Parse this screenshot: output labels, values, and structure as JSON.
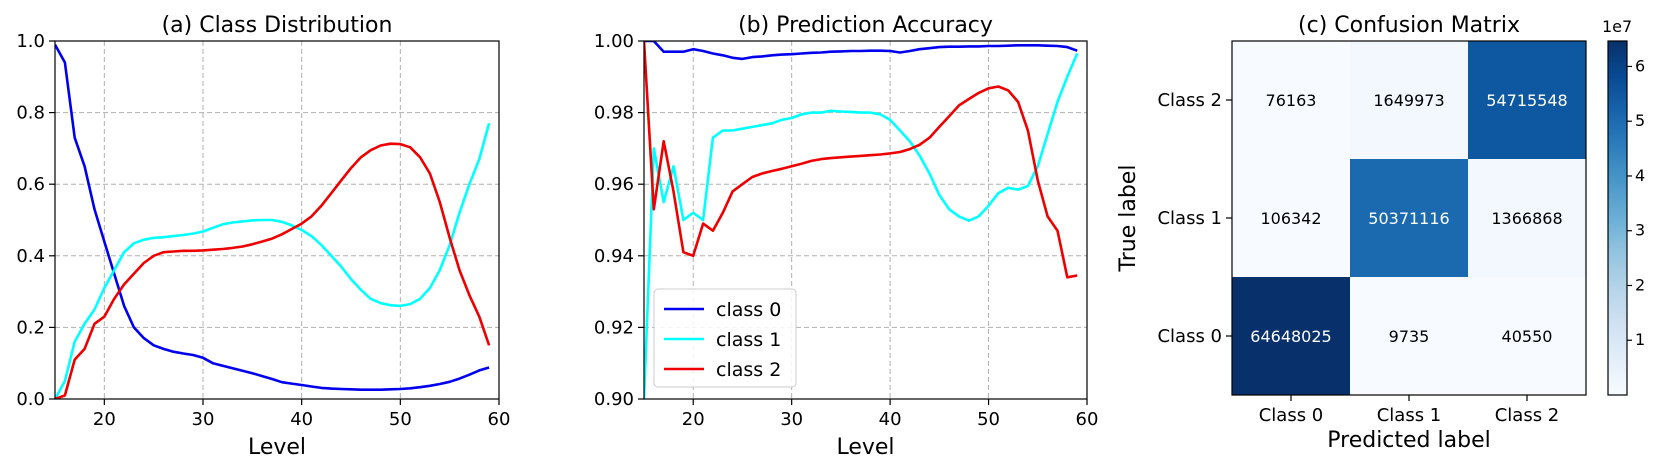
{
  "chart_data": [
    {
      "type": "line",
      "title": "(a) Class Distribution",
      "xlabel": "Level",
      "ylabel": "",
      "xlim": [
        15,
        60
      ],
      "ylim": [
        0,
        1
      ],
      "xticks": [
        "20",
        "30",
        "40",
        "50",
        "60"
      ],
      "yticks": [
        "0.0",
        "0.2",
        "0.4",
        "0.6",
        "0.8",
        "1.0"
      ],
      "grid": true,
      "x": [
        15,
        16,
        17,
        18,
        19,
        20,
        21,
        22,
        23,
        24,
        25,
        26,
        27,
        28,
        29,
        30,
        31,
        32,
        33,
        34,
        35,
        36,
        37,
        38,
        39,
        40,
        41,
        42,
        43,
        44,
        45,
        46,
        47,
        48,
        49,
        50,
        51,
        52,
        53,
        54,
        55,
        56,
        57,
        58,
        59
      ],
      "series": [
        {
          "color": "#0000ee",
          "values": [
            0.99,
            0.94,
            0.73,
            0.65,
            0.53,
            0.44,
            0.35,
            0.26,
            0.2,
            0.17,
            0.15,
            0.14,
            0.132,
            0.127,
            0.123,
            0.115,
            0.1,
            0.093,
            0.086,
            0.079,
            0.072,
            0.064,
            0.056,
            0.047,
            0.043,
            0.039,
            0.035,
            0.031,
            0.029,
            0.028,
            0.027,
            0.026,
            0.026,
            0.026,
            0.027,
            0.028,
            0.03,
            0.033,
            0.037,
            0.042,
            0.048,
            0.057,
            0.068,
            0.08,
            0.088
          ]
        },
        {
          "color": "#00ffff",
          "values": [
            0.0,
            0.05,
            0.16,
            0.21,
            0.25,
            0.31,
            0.36,
            0.41,
            0.435,
            0.445,
            0.45,
            0.452,
            0.455,
            0.458,
            0.462,
            0.468,
            0.478,
            0.488,
            0.493,
            0.496,
            0.499,
            0.5,
            0.5,
            0.495,
            0.485,
            0.472,
            0.455,
            0.43,
            0.4,
            0.37,
            0.335,
            0.305,
            0.28,
            0.268,
            0.262,
            0.26,
            0.265,
            0.28,
            0.31,
            0.36,
            0.43,
            0.52,
            0.6,
            0.67,
            0.77
          ]
        },
        {
          "color": "#ee0000",
          "values": [
            0.0,
            0.01,
            0.11,
            0.14,
            0.21,
            0.23,
            0.28,
            0.32,
            0.35,
            0.38,
            0.4,
            0.41,
            0.412,
            0.414,
            0.414,
            0.415,
            0.417,
            0.419,
            0.422,
            0.426,
            0.432,
            0.44,
            0.448,
            0.46,
            0.475,
            0.49,
            0.51,
            0.54,
            0.575,
            0.61,
            0.645,
            0.675,
            0.695,
            0.708,
            0.713,
            0.712,
            0.703,
            0.675,
            0.63,
            0.55,
            0.45,
            0.36,
            0.29,
            0.23,
            0.15
          ]
        }
      ]
    },
    {
      "type": "line",
      "title": "(b) Prediction Accuracy",
      "xlabel": "Level",
      "ylabel": "",
      "xlim": [
        15,
        60
      ],
      "ylim": [
        0.9,
        1.0
      ],
      "xticks": [
        "20",
        "30",
        "40",
        "50",
        "60"
      ],
      "yticks": [
        "0.90",
        "0.92",
        "0.94",
        "0.96",
        "0.98",
        "1.00"
      ],
      "grid": true,
      "legend": "lower-left",
      "x": [
        15,
        16,
        17,
        18,
        19,
        20,
        21,
        22,
        23,
        24,
        25,
        26,
        27,
        28,
        29,
        30,
        31,
        32,
        33,
        34,
        35,
        36,
        37,
        38,
        39,
        40,
        41,
        42,
        43,
        44,
        45,
        46,
        47,
        48,
        49,
        50,
        51,
        52,
        53,
        54,
        55,
        56,
        57,
        58,
        59
      ],
      "series": [
        {
          "name": "class 0",
          "color": "#0000ee",
          "values": [
            1.0,
            1.0,
            0.997,
            0.997,
            0.997,
            0.9977,
            0.9972,
            0.9965,
            0.996,
            0.9953,
            0.995,
            0.9955,
            0.9957,
            0.996,
            0.9962,
            0.9963,
            0.9965,
            0.9967,
            0.9968,
            0.997,
            0.9971,
            0.9972,
            0.9972,
            0.9973,
            0.9973,
            0.9972,
            0.9968,
            0.9972,
            0.9977,
            0.998,
            0.9983,
            0.9984,
            0.9984,
            0.9985,
            0.9985,
            0.9986,
            0.9986,
            0.9987,
            0.9988,
            0.9988,
            0.9988,
            0.9987,
            0.9986,
            0.9983,
            0.9973
          ]
        },
        {
          "name": "class 1",
          "color": "#00ffff",
          "values": [
            0.9,
            0.97,
            0.955,
            0.965,
            0.95,
            0.952,
            0.95,
            0.973,
            0.975,
            0.975,
            0.9755,
            0.976,
            0.9765,
            0.977,
            0.978,
            0.9785,
            0.9795,
            0.98,
            0.98,
            0.9805,
            0.9803,
            0.9802,
            0.98,
            0.98,
            0.9795,
            0.978,
            0.975,
            0.972,
            0.968,
            0.963,
            0.957,
            0.953,
            0.951,
            0.9498,
            0.951,
            0.954,
            0.9575,
            0.959,
            0.9585,
            0.9595,
            0.965,
            0.974,
            0.983,
            0.99,
            0.9965
          ]
        },
        {
          "name": "class 2",
          "color": "#ee0000",
          "values": [
            1.0,
            0.953,
            0.972,
            0.958,
            0.941,
            0.94,
            0.949,
            0.947,
            0.952,
            0.958,
            0.96,
            0.962,
            0.963,
            0.9637,
            0.9643,
            0.965,
            0.9657,
            0.9665,
            0.967,
            0.9673,
            0.9675,
            0.9677,
            0.9679,
            0.9681,
            0.9683,
            0.9686,
            0.969,
            0.9698,
            0.971,
            0.973,
            0.976,
            0.979,
            0.982,
            0.9838,
            0.9855,
            0.9868,
            0.9873,
            0.9862,
            0.983,
            0.975,
            0.961,
            0.951,
            0.947,
            0.934,
            0.9345
          ]
        }
      ]
    },
    {
      "type": "heatmap",
      "title": "(c) Confusion Matrix",
      "xlabel": "Predicted label",
      "ylabel": "True label",
      "x_categories": [
        "Class 0",
        "Class 1",
        "Class 2"
      ],
      "y_categories": [
        "Class 2",
        "Class 1",
        "Class 0"
      ],
      "values": [
        [
          76163,
          1649973,
          54715548
        ],
        [
          106342,
          50371116,
          1366868
        ],
        [
          64648025,
          9735,
          40550
        ]
      ],
      "value_labels": [
        [
          "76163",
          "1649973",
          "54715548"
        ],
        [
          "106342",
          "50371116",
          "1366868"
        ],
        [
          "64648025",
          "9735",
          "40550"
        ]
      ],
      "colormap": "Blues",
      "colorbar": {
        "ticks": [
          "1",
          "2",
          "3",
          "4",
          "5",
          "6"
        ],
        "tick_values": [
          10000000,
          20000000,
          30000000,
          40000000,
          50000000,
          60000000
        ],
        "offset_label": "1e7",
        "range": [
          0,
          64648025
        ]
      }
    }
  ]
}
